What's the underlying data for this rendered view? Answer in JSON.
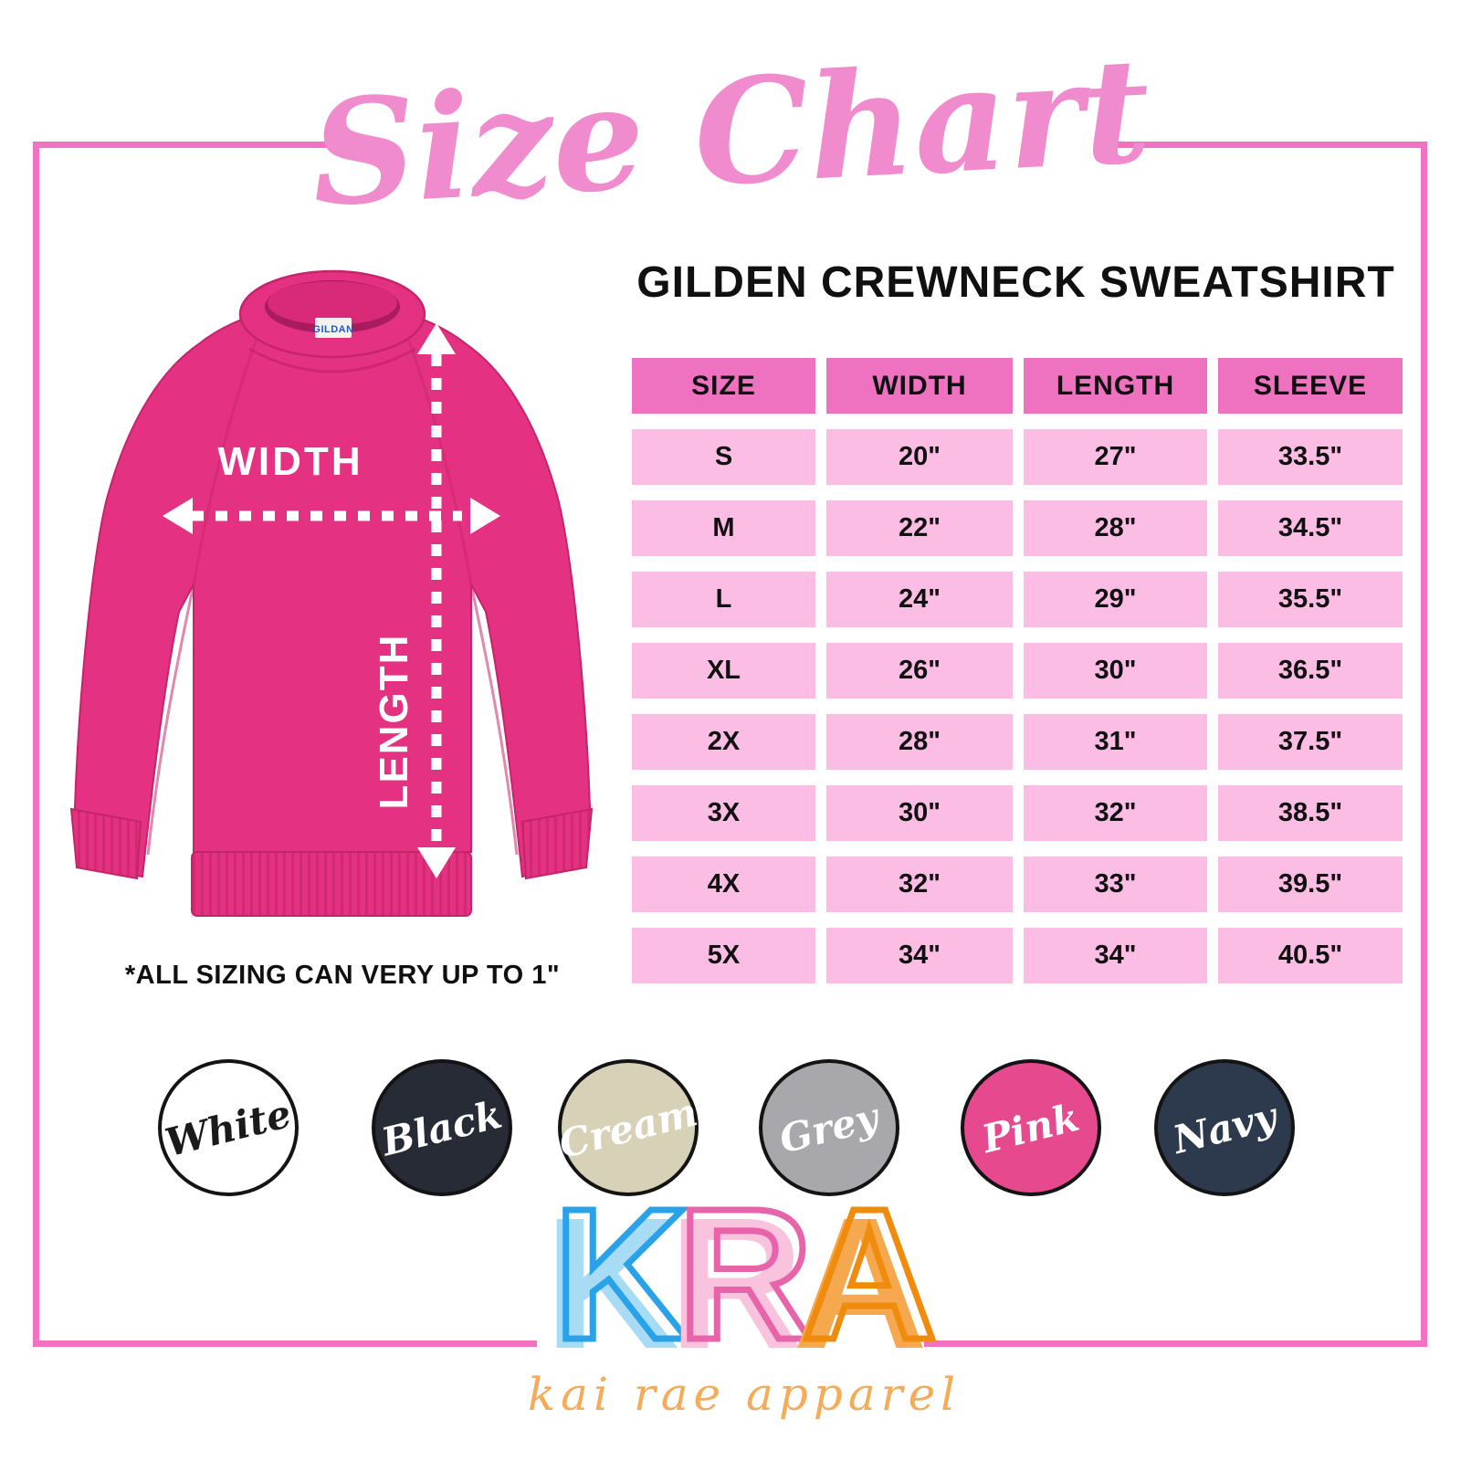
{
  "title": "Size Chart",
  "product_title": "GILDEN CREWNECK SWEATSHIRT",
  "sizing_note": "*ALL SIZING CAN VERY UP TO 1\"",
  "diagram": {
    "width_label": "WIDTH",
    "length_label": "LENGTH",
    "neck_tag": "GILDAN",
    "garment_color": "#e43181"
  },
  "chart_data": {
    "type": "table",
    "title": "Size Chart",
    "subtitle": "GILDEN CREWNECK SWEATSHIRT",
    "columns": [
      "SIZE",
      "WIDTH",
      "LENGTH",
      "SLEEVE"
    ],
    "rows": [
      [
        "S",
        "20\"",
        "27\"",
        "33.5\""
      ],
      [
        "M",
        "22\"",
        "28\"",
        "34.5\""
      ],
      [
        "L",
        "24\"",
        "29\"",
        "35.5\""
      ],
      [
        "XL",
        "26\"",
        "30\"",
        "36.5\""
      ],
      [
        "2X",
        "28\"",
        "31\"",
        "37.5\""
      ],
      [
        "3X",
        "30\"",
        "32\"",
        "38.5\""
      ],
      [
        "4X",
        "32\"",
        "33\"",
        "39.5\""
      ],
      [
        "5X",
        "34\"",
        "34\"",
        "40.5\""
      ]
    ],
    "note": "*ALL SIZING CAN VERY UP TO 1\""
  },
  "swatches": [
    {
      "label": "White",
      "color": "#ffffff",
      "text_color": "#1a1a1a"
    },
    {
      "label": "Black",
      "color": "#262b36",
      "text_color": "#ffffff"
    },
    {
      "label": "Cream",
      "color": "#d7d1b8",
      "text_color": "#ffffff"
    },
    {
      "label": "Grey",
      "color": "#a7a7ac",
      "text_color": "#ffffff"
    },
    {
      "label": "Pink",
      "color": "#e7498e",
      "text_color": "#ffffff"
    },
    {
      "label": "Navy",
      "color": "#2d3a4e",
      "text_color": "#ffffff"
    }
  ],
  "logo": {
    "letters": [
      {
        "char": "K",
        "fill": "#a7dcf4",
        "outline": "#2aa2e8"
      },
      {
        "char": "R",
        "fill": "#f9c3de",
        "outline": "#e763aa"
      },
      {
        "char": "A",
        "fill": "#f6a84e",
        "outline": "#ef8c0e"
      }
    ],
    "subtitle": "kai rae apparel"
  },
  "colors": {
    "frame": "#f172c0",
    "table_header_bg": "#ef72c0",
    "table_row_bg": "#fcbde5",
    "title_pink": "#f08bce",
    "subtitle_orange": "#f5ab57"
  }
}
